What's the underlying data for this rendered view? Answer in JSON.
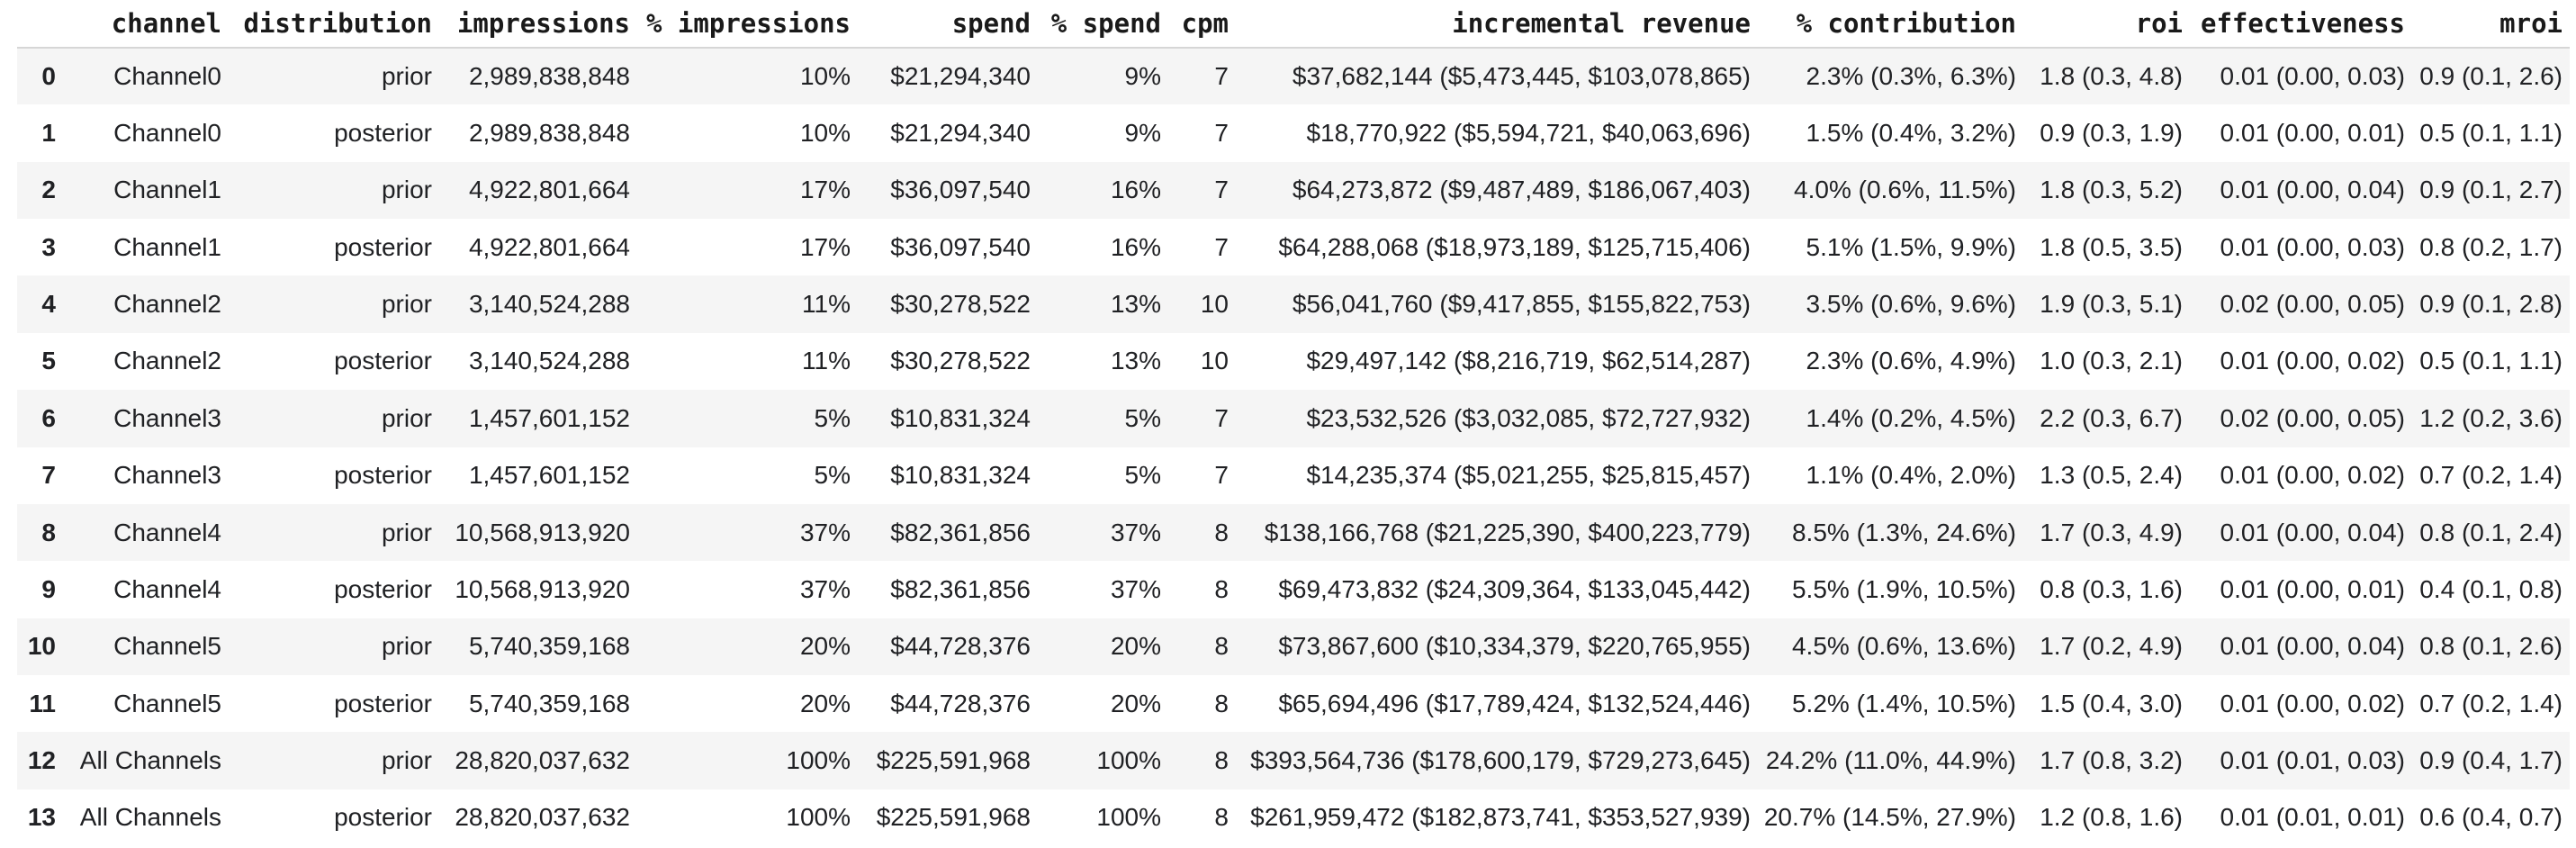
{
  "style": {
    "stripe_color": "#f5f5f5",
    "header_border_color": "#d6d6d6",
    "text_color": "#202124"
  },
  "chart_data": {
    "type": "table",
    "title": "",
    "columns": [
      "",
      "channel",
      "distribution",
      "impressions",
      "% impressions",
      "spend",
      "% spend",
      "cpm",
      "incremental revenue",
      "% contribution",
      "roi",
      "effectiveness",
      "mroi"
    ],
    "rows": [
      [
        "0",
        "Channel0",
        "prior",
        "2,989,838,848",
        "10%",
        "$21,294,340",
        "9%",
        "7",
        "$37,682,144 ($5,473,445, $103,078,865)",
        "2.3% (0.3%, 6.3%)",
        "1.8 (0.3, 4.8)",
        "0.01 (0.00, 0.03)",
        "0.9 (0.1, 2.6)"
      ],
      [
        "1",
        "Channel0",
        "posterior",
        "2,989,838,848",
        "10%",
        "$21,294,340",
        "9%",
        "7",
        "$18,770,922 ($5,594,721, $40,063,696)",
        "1.5% (0.4%, 3.2%)",
        "0.9 (0.3, 1.9)",
        "0.01 (0.00, 0.01)",
        "0.5 (0.1, 1.1)"
      ],
      [
        "2",
        "Channel1",
        "prior",
        "4,922,801,664",
        "17%",
        "$36,097,540",
        "16%",
        "7",
        "$64,273,872 ($9,487,489, $186,067,403)",
        "4.0% (0.6%, 11.5%)",
        "1.8 (0.3, 5.2)",
        "0.01 (0.00, 0.04)",
        "0.9 (0.1, 2.7)"
      ],
      [
        "3",
        "Channel1",
        "posterior",
        "4,922,801,664",
        "17%",
        "$36,097,540",
        "16%",
        "7",
        "$64,288,068 ($18,973,189, $125,715,406)",
        "5.1% (1.5%, 9.9%)",
        "1.8 (0.5, 3.5)",
        "0.01 (0.00, 0.03)",
        "0.8 (0.2, 1.7)"
      ],
      [
        "4",
        "Channel2",
        "prior",
        "3,140,524,288",
        "11%",
        "$30,278,522",
        "13%",
        "10",
        "$56,041,760 ($9,417,855, $155,822,753)",
        "3.5% (0.6%, 9.6%)",
        "1.9 (0.3, 5.1)",
        "0.02 (0.00, 0.05)",
        "0.9 (0.1, 2.8)"
      ],
      [
        "5",
        "Channel2",
        "posterior",
        "3,140,524,288",
        "11%",
        "$30,278,522",
        "13%",
        "10",
        "$29,497,142 ($8,216,719, $62,514,287)",
        "2.3% (0.6%, 4.9%)",
        "1.0 (0.3, 2.1)",
        "0.01 (0.00, 0.02)",
        "0.5 (0.1, 1.1)"
      ],
      [
        "6",
        "Channel3",
        "prior",
        "1,457,601,152",
        "5%",
        "$10,831,324",
        "5%",
        "7",
        "$23,532,526 ($3,032,085, $72,727,932)",
        "1.4% (0.2%, 4.5%)",
        "2.2 (0.3, 6.7)",
        "0.02 (0.00, 0.05)",
        "1.2 (0.2, 3.6)"
      ],
      [
        "7",
        "Channel3",
        "posterior",
        "1,457,601,152",
        "5%",
        "$10,831,324",
        "5%",
        "7",
        "$14,235,374 ($5,021,255, $25,815,457)",
        "1.1% (0.4%, 2.0%)",
        "1.3 (0.5, 2.4)",
        "0.01 (0.00, 0.02)",
        "0.7 (0.2, 1.4)"
      ],
      [
        "8",
        "Channel4",
        "prior",
        "10,568,913,920",
        "37%",
        "$82,361,856",
        "37%",
        "8",
        "$138,166,768 ($21,225,390, $400,223,779)",
        "8.5% (1.3%, 24.6%)",
        "1.7 (0.3, 4.9)",
        "0.01 (0.00, 0.04)",
        "0.8 (0.1, 2.4)"
      ],
      [
        "9",
        "Channel4",
        "posterior",
        "10,568,913,920",
        "37%",
        "$82,361,856",
        "37%",
        "8",
        "$69,473,832 ($24,309,364, $133,045,442)",
        "5.5% (1.9%, 10.5%)",
        "0.8 (0.3, 1.6)",
        "0.01 (0.00, 0.01)",
        "0.4 (0.1, 0.8)"
      ],
      [
        "10",
        "Channel5",
        "prior",
        "5,740,359,168",
        "20%",
        "$44,728,376",
        "20%",
        "8",
        "$73,867,600 ($10,334,379, $220,765,955)",
        "4.5% (0.6%, 13.6%)",
        "1.7 (0.2, 4.9)",
        "0.01 (0.00, 0.04)",
        "0.8 (0.1, 2.6)"
      ],
      [
        "11",
        "Channel5",
        "posterior",
        "5,740,359,168",
        "20%",
        "$44,728,376",
        "20%",
        "8",
        "$65,694,496 ($17,789,424, $132,524,446)",
        "5.2% (1.4%, 10.5%)",
        "1.5 (0.4, 3.0)",
        "0.01 (0.00, 0.02)",
        "0.7 (0.2, 1.4)"
      ],
      [
        "12",
        "All Channels",
        "prior",
        "28,820,037,632",
        "100%",
        "$225,591,968",
        "100%",
        "8",
        "$393,564,736 ($178,600,179, $729,273,645)",
        "24.2% (11.0%, 44.9%)",
        "1.7 (0.8, 3.2)",
        "0.01 (0.01, 0.03)",
        "0.9 (0.4, 1.7)"
      ],
      [
        "13",
        "All Channels",
        "posterior",
        "28,820,037,632",
        "100%",
        "$225,591,968",
        "100%",
        "8",
        "$261,959,472 ($182,873,741, $353,527,939)",
        "20.7% (14.5%, 27.9%)",
        "1.2 (0.8, 1.6)",
        "0.01 (0.01, 0.01)",
        "0.6 (0.4, 0.7)"
      ]
    ]
  }
}
